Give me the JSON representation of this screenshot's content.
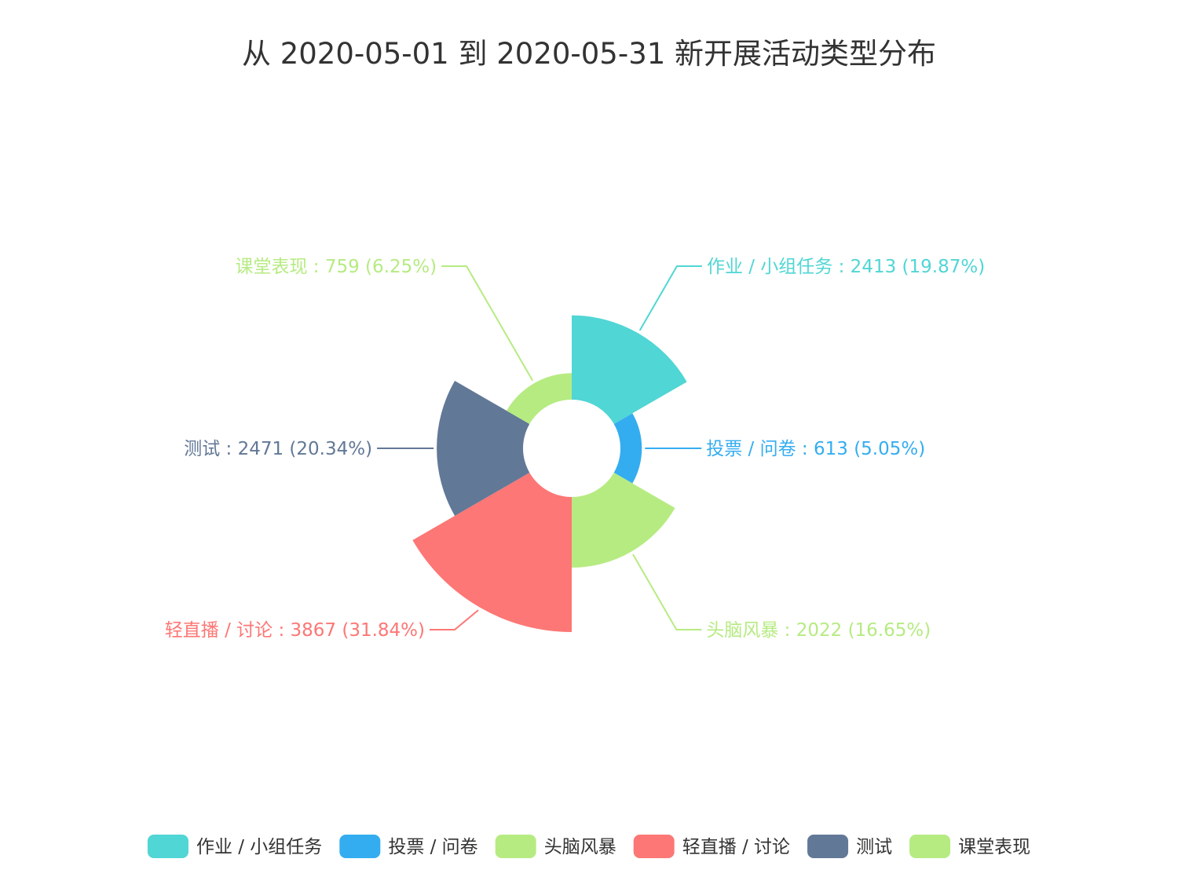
{
  "chart_data": {
    "type": "pie",
    "variant": "rose",
    "title": "从 2020-05-01 到 2020-05-31 新开展活动类型分布",
    "legend_position": "bottom",
    "label_format": "{name} : {value} ({percent}%)",
    "slices": [
      {
        "name": "作业 / 小组任务",
        "value": 2413,
        "percent": "19.87",
        "color": "#50d6d4"
      },
      {
        "name": "投票 / 问卷",
        "value": 613,
        "percent": "5.05",
        "color": "#34adf0"
      },
      {
        "name": "头脑风暴",
        "value": 2022,
        "percent": "16.65",
        "color": "#b6eb82"
      },
      {
        "name": "轻直播 / 讨论",
        "value": 3867,
        "percent": "31.84",
        "color": "#fc7775"
      },
      {
        "name": "测试",
        "value": 2471,
        "percent": "20.34",
        "color": "#627897"
      },
      {
        "name": "课堂表现",
        "value": 759,
        "percent": "6.25",
        "color": "#b6eb82"
      }
    ]
  }
}
